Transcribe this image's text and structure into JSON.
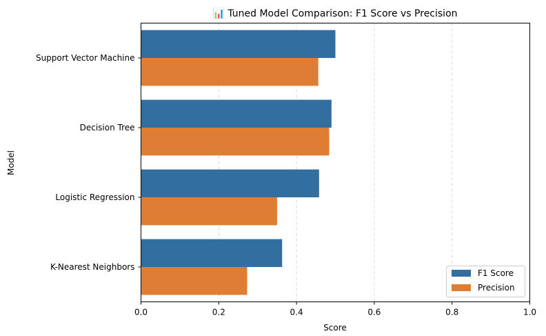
{
  "chart_data": {
    "type": "bar",
    "orientation": "horizontal",
    "title": "📊 Tuned Model Comparison: F1 Score vs Precision",
    "xlabel": "Score",
    "ylabel": "Model",
    "categories": [
      "Support Vector Machine",
      "Decision Tree",
      "Logistic Regression",
      "K-Nearest Neighbors"
    ],
    "series": [
      {
        "name": "F1 Score",
        "color": "#336ea0",
        "values": [
          0.5,
          0.49,
          0.458,
          0.363
        ]
      },
      {
        "name": "Precision",
        "color": "#e07d35",
        "values": [
          0.456,
          0.484,
          0.35,
          0.273
        ]
      }
    ],
    "xlim": [
      0,
      1.0
    ],
    "xticks": [
      "0.0",
      "0.2",
      "0.4",
      "0.6",
      "0.8",
      "1.0"
    ],
    "grid": "x-axis dashed",
    "legend": "lower-right"
  }
}
